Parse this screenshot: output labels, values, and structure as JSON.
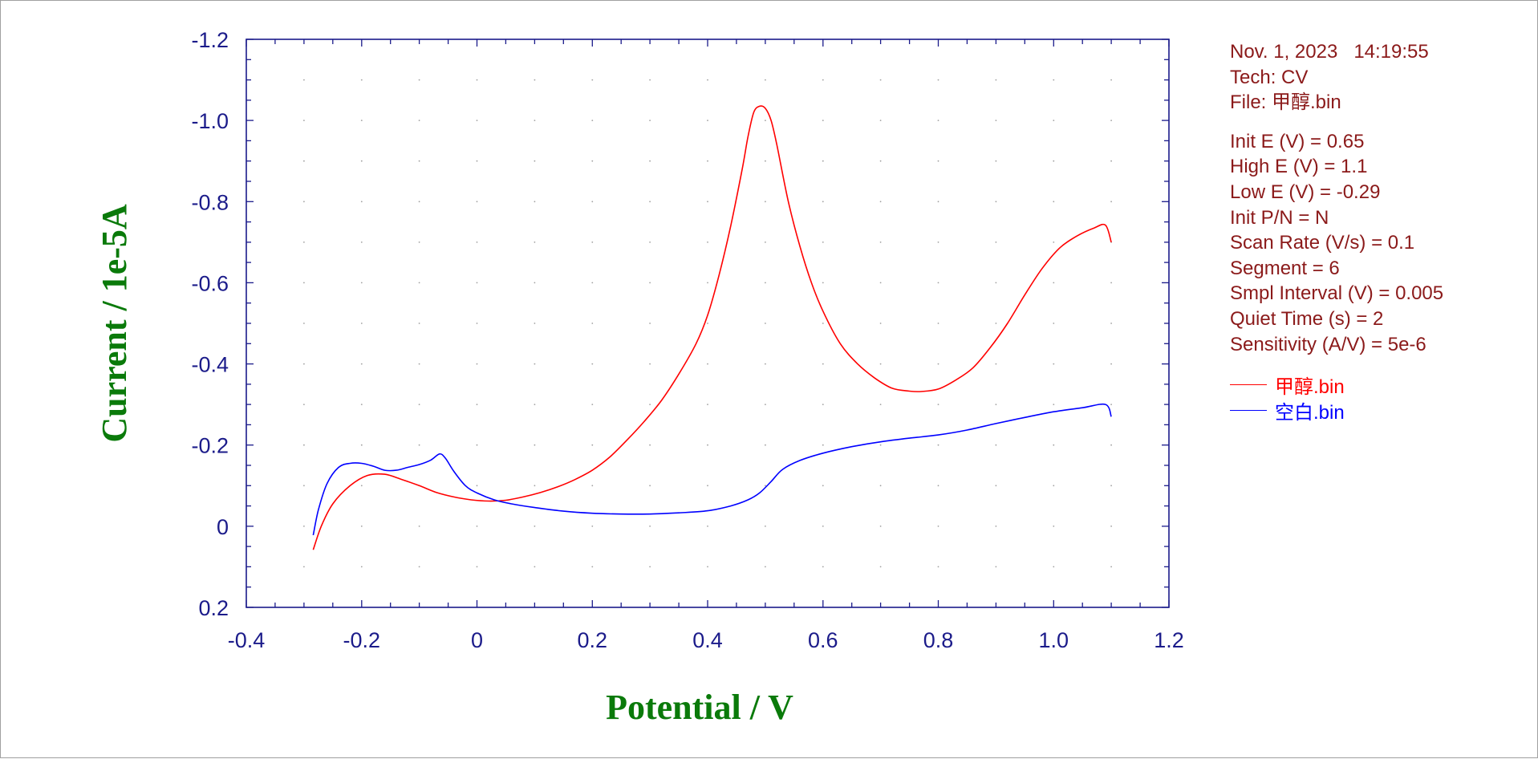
{
  "chart_data": {
    "type": "line",
    "xlabel": "Potential / V",
    "ylabel": "Current / 1e-5A",
    "xlim": [
      -0.4,
      1.2
    ],
    "ylim": [
      0.2,
      -1.2
    ],
    "x_ticks": [
      "-0.4",
      "-0.2",
      "0",
      "0.2",
      "0.4",
      "0.6",
      "0.8",
      "1.0",
      "1.2"
    ],
    "y_ticks": [
      "-1.2",
      "-1.0",
      "-0.8",
      "-0.6",
      "-0.4",
      "-0.2",
      "0",
      "0.2"
    ],
    "x_tick_values": [
      -0.4,
      -0.2,
      0,
      0.2,
      0.4,
      0.6,
      0.8,
      1.0,
      1.2
    ],
    "y_tick_values": [
      -1.2,
      -1.0,
      -0.8,
      -0.6,
      -0.4,
      -0.2,
      0,
      0.2
    ],
    "grid": true,
    "legend_position": "right",
    "series": [
      {
        "name": "甲醇.bin",
        "color": "#ff0000",
        "points": [
          [
            -0.284,
            0.058
          ],
          [
            -0.27,
            0.0
          ],
          [
            -0.25,
            -0.055
          ],
          [
            -0.22,
            -0.1
          ],
          [
            -0.19,
            -0.125
          ],
          [
            -0.16,
            -0.128
          ],
          [
            -0.13,
            -0.115
          ],
          [
            -0.1,
            -0.1
          ],
          [
            -0.07,
            -0.083
          ],
          [
            -0.04,
            -0.072
          ],
          [
            -0.01,
            -0.065
          ],
          [
            0.02,
            -0.062
          ],
          [
            0.05,
            -0.064
          ],
          [
            0.08,
            -0.072
          ],
          [
            0.11,
            -0.083
          ],
          [
            0.14,
            -0.097
          ],
          [
            0.17,
            -0.115
          ],
          [
            0.2,
            -0.138
          ],
          [
            0.23,
            -0.17
          ],
          [
            0.26,
            -0.212
          ],
          [
            0.29,
            -0.258
          ],
          [
            0.32,
            -0.31
          ],
          [
            0.35,
            -0.375
          ],
          [
            0.38,
            -0.45
          ],
          [
            0.4,
            -0.52
          ],
          [
            0.42,
            -0.62
          ],
          [
            0.44,
            -0.74
          ],
          [
            0.46,
            -0.88
          ],
          [
            0.47,
            -0.96
          ],
          [
            0.48,
            -1.02
          ],
          [
            0.49,
            -1.035
          ],
          [
            0.5,
            -1.03
          ],
          [
            0.51,
            -1.0
          ],
          [
            0.52,
            -0.94
          ],
          [
            0.54,
            -0.8
          ],
          [
            0.56,
            -0.69
          ],
          [
            0.58,
            -0.6
          ],
          [
            0.6,
            -0.53
          ],
          [
            0.63,
            -0.45
          ],
          [
            0.66,
            -0.4
          ],
          [
            0.69,
            -0.365
          ],
          [
            0.72,
            -0.34
          ],
          [
            0.75,
            -0.333
          ],
          [
            0.77,
            -0.332
          ],
          [
            0.8,
            -0.338
          ],
          [
            0.83,
            -0.36
          ],
          [
            0.86,
            -0.39
          ],
          [
            0.89,
            -0.44
          ],
          [
            0.92,
            -0.5
          ],
          [
            0.95,
            -0.57
          ],
          [
            0.98,
            -0.635
          ],
          [
            1.01,
            -0.685
          ],
          [
            1.04,
            -0.715
          ],
          [
            1.07,
            -0.735
          ],
          [
            1.09,
            -0.742
          ],
          [
            1.1,
            -0.7
          ]
        ]
      },
      {
        "name": "空白.bin",
        "color": "#0000ff",
        "points": [
          [
            -0.284,
            0.022
          ],
          [
            -0.275,
            -0.04
          ],
          [
            -0.26,
            -0.105
          ],
          [
            -0.24,
            -0.145
          ],
          [
            -0.22,
            -0.155
          ],
          [
            -0.2,
            -0.155
          ],
          [
            -0.18,
            -0.148
          ],
          [
            -0.16,
            -0.138
          ],
          [
            -0.14,
            -0.138
          ],
          [
            -0.12,
            -0.145
          ],
          [
            -0.1,
            -0.152
          ],
          [
            -0.08,
            -0.163
          ],
          [
            -0.065,
            -0.178
          ],
          [
            -0.055,
            -0.168
          ],
          [
            -0.04,
            -0.135
          ],
          [
            -0.02,
            -0.1
          ],
          [
            0.0,
            -0.082
          ],
          [
            0.03,
            -0.065
          ],
          [
            0.06,
            -0.055
          ],
          [
            0.1,
            -0.046
          ],
          [
            0.15,
            -0.037
          ],
          [
            0.2,
            -0.032
          ],
          [
            0.25,
            -0.03
          ],
          [
            0.3,
            -0.03
          ],
          [
            0.35,
            -0.033
          ],
          [
            0.4,
            -0.038
          ],
          [
            0.44,
            -0.05
          ],
          [
            0.47,
            -0.065
          ],
          [
            0.49,
            -0.082
          ],
          [
            0.51,
            -0.11
          ],
          [
            0.53,
            -0.14
          ],
          [
            0.56,
            -0.162
          ],
          [
            0.6,
            -0.18
          ],
          [
            0.65,
            -0.196
          ],
          [
            0.7,
            -0.208
          ],
          [
            0.75,
            -0.217
          ],
          [
            0.8,
            -0.225
          ],
          [
            0.85,
            -0.237
          ],
          [
            0.9,
            -0.253
          ],
          [
            0.95,
            -0.268
          ],
          [
            1.0,
            -0.282
          ],
          [
            1.05,
            -0.292
          ],
          [
            1.09,
            -0.3
          ],
          [
            1.1,
            -0.27
          ]
        ]
      }
    ]
  },
  "info": {
    "date": "Nov. 1, 2023   14:19:55",
    "tech": "Tech: CV",
    "file": "File: 甲醇.bin",
    "init_e": "Init E (V) = 0.65",
    "high_e": "High E (V) = 1.1",
    "low_e": "Low E (V) = -0.29",
    "init_pn": "Init P/N = N",
    "scan_rate": "Scan Rate (V/s) = 0.1",
    "segment": "Segment = 6",
    "smpl_interval": "Smpl Interval (V) = 0.005",
    "quiet_time": "Quiet Time (s) = 2",
    "sensitivity": "Sensitivity (A/V) = 5e-6"
  },
  "colors": {
    "axis": "#1b1b8a",
    "info_text": "#8b1a1a",
    "axis_title": "#0a7a0a",
    "grid_dot": "#a0a0a0"
  }
}
